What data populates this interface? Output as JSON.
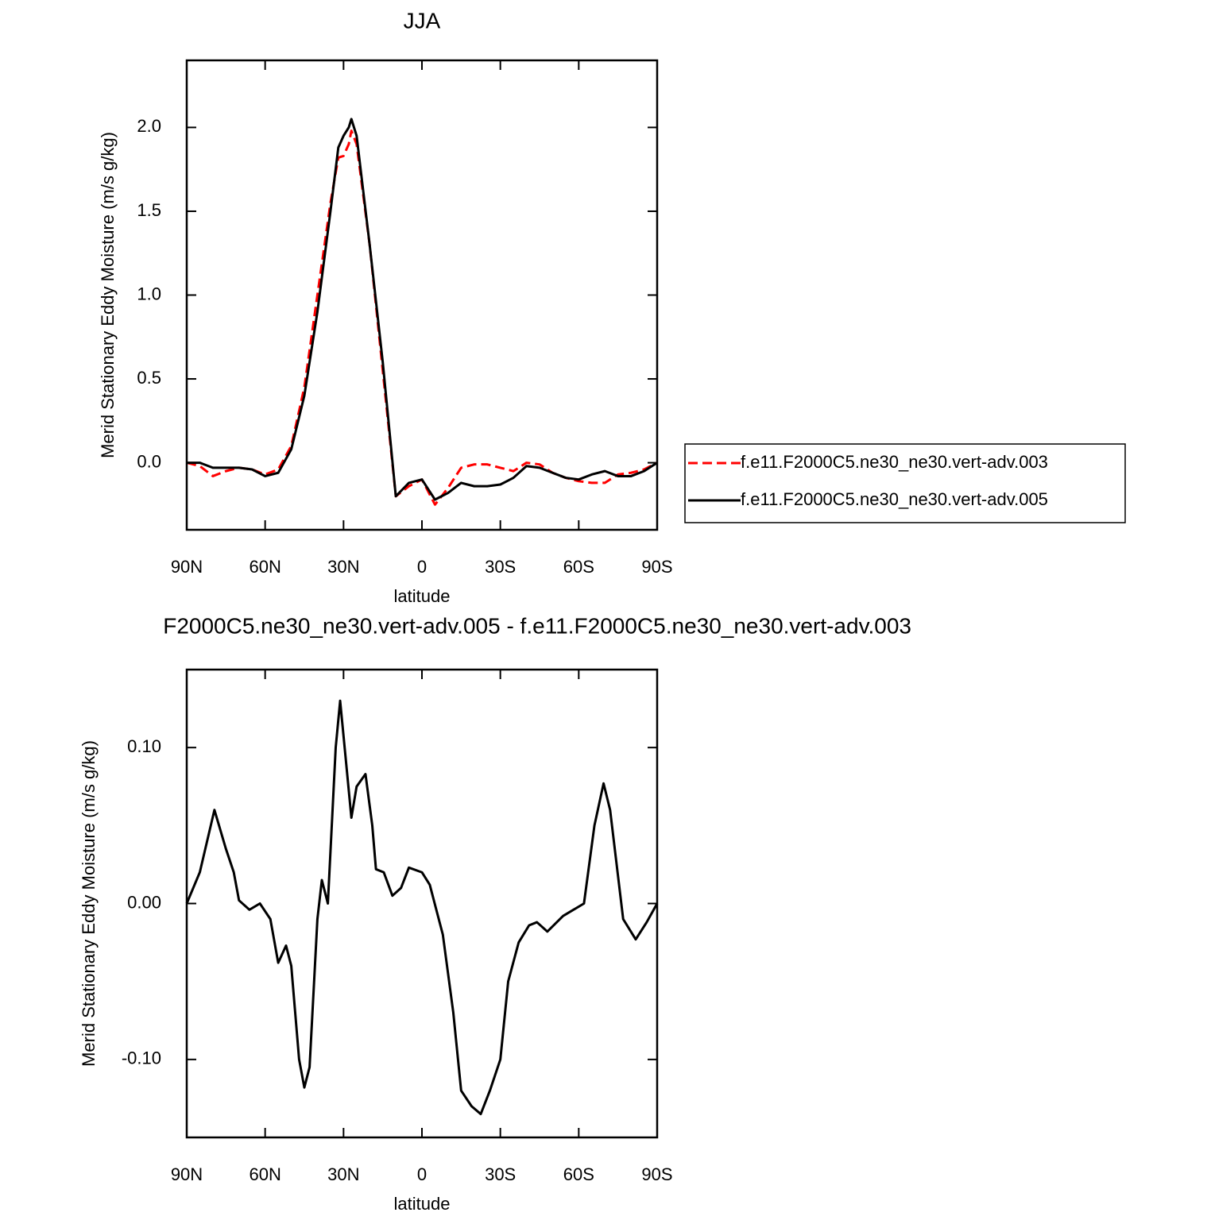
{
  "chart_data": [
    {
      "type": "line",
      "title": "JJA",
      "xlabel": "latitude",
      "ylabel": "Merid Stationary Eddy Moisture (m/s g/kg)",
      "x": [
        90,
        85,
        80,
        75,
        70,
        65,
        60,
        55,
        50,
        45,
        40,
        35,
        32,
        30,
        28,
        27,
        25,
        20,
        15,
        10,
        5,
        0,
        -5,
        -10,
        -15,
        -20,
        -25,
        -30,
        -35,
        -40,
        -45,
        -50,
        -55,
        -60,
        -65,
        -70,
        -75,
        -80,
        -85,
        -90
      ],
      "series": [
        {
          "name": "f.e11.F2000C5.ne30_ne30.vert-adv.003",
          "color": "#ff0000",
          "line_style": "dashed",
          "values": [
            0,
            -0.02,
            -0.08,
            -0.05,
            -0.03,
            -0.04,
            -0.07,
            -0.04,
            0.1,
            0.45,
            1.0,
            1.55,
            1.82,
            1.83,
            1.9,
            1.98,
            1.9,
            1.3,
            0.55,
            -0.2,
            -0.14,
            -0.1,
            -0.25,
            -0.15,
            -0.03,
            -0.01,
            -0.01,
            -0.03,
            -0.05,
            0.0,
            -0.01,
            -0.06,
            -0.09,
            -0.11,
            -0.12,
            -0.12,
            -0.07,
            -0.06,
            -0.04,
            0
          ]
        },
        {
          "name": "f.e11.F2000C5.ne30_ne30.vert-adv.005",
          "color": "#000000",
          "line_style": "solid",
          "values": [
            0,
            0.0,
            -0.03,
            -0.03,
            -0.03,
            -0.04,
            -0.08,
            -0.06,
            0.08,
            0.4,
            0.9,
            1.5,
            1.88,
            1.95,
            2.0,
            2.05,
            1.95,
            1.3,
            0.6,
            -0.2,
            -0.12,
            -0.1,
            -0.22,
            -0.18,
            -0.12,
            -0.14,
            -0.14,
            -0.13,
            -0.09,
            -0.02,
            -0.03,
            -0.06,
            -0.09,
            -0.1,
            -0.07,
            -0.05,
            -0.08,
            -0.08,
            -0.05,
            0
          ]
        }
      ],
      "xlim": [
        90,
        -90
      ],
      "xticks": [
        {
          "value": 90,
          "label": "90N"
        },
        {
          "value": 60,
          "label": "60N"
        },
        {
          "value": 30,
          "label": "30N"
        },
        0,
        {
          "value": -30,
          "label": "30S"
        },
        {
          "value": -60,
          "label": "60S"
        },
        {
          "value": -90,
          "label": "90S"
        }
      ],
      "ylim": [
        -0.4,
        2.4
      ],
      "yticks": [
        {
          "value": 0,
          "label": "0.0"
        },
        {
          "value": 0.5,
          "label": "0.5"
        },
        {
          "value": 1,
          "label": "1.0"
        },
        {
          "value": 1.5,
          "label": "1.5"
        },
        {
          "value": 2,
          "label": "2.0"
        }
      ],
      "legend": "right",
      "grid": false
    },
    {
      "type": "line",
      "title": "F2000C5.ne30_ne30.vert-adv.005 - f.e11.F2000C5.ne30_ne30.vert-adv.003",
      "xlabel": "latitude",
      "ylabel": "Merid Stationary Eddy Moisture (m/s g/kg)",
      "x": [
        90,
        85,
        79.4,
        75,
        72,
        70,
        66,
        62,
        58,
        55,
        52,
        50,
        47,
        45,
        43,
        40,
        38.3,
        36,
        33,
        31.3,
        29,
        27,
        25,
        21.6,
        19,
        17.6,
        14.6,
        11.3,
        8,
        5,
        0,
        -3,
        -8,
        -12,
        -15,
        -19,
        -22.5,
        -26,
        -30,
        -33,
        -37,
        -41,
        -44,
        -48,
        -54,
        -58,
        -62,
        -66,
        -69.5,
        -72,
        -77,
        -81.8,
        -86,
        -90
      ],
      "series": [
        {
          "color": "#000000",
          "line_style": "solid",
          "values": [
            0,
            0.02,
            0.06,
            0.035,
            0.02,
            0.002,
            -0.004,
            0,
            -0.01,
            -0.038,
            -0.027,
            -0.04,
            -0.1,
            -0.118,
            -0.105,
            -0.01,
            0.015,
            0,
            0.1,
            0.13,
            0.09,
            0.055,
            0.075,
            0.083,
            0.05,
            0.022,
            0.02,
            0.005,
            0.01,
            0.023,
            0.02,
            0.012,
            -0.02,
            -0.07,
            -0.12,
            -0.13,
            -0.135,
            -0.12,
            -0.1,
            -0.05,
            -0.025,
            -0.014,
            -0.012,
            -0.018,
            -0.008,
            -0.004,
            0,
            0.05,
            0.077,
            0.06,
            -0.01,
            -0.023,
            -0.012,
            0
          ]
        }
      ],
      "xlim": [
        90,
        -90
      ],
      "xticks": [
        {
          "value": 90,
          "label": "90N"
        },
        {
          "value": 60,
          "label": "60N"
        },
        {
          "value": 30,
          "label": "30N"
        },
        0,
        {
          "value": -30,
          "label": "30S"
        },
        {
          "value": -60,
          "label": "60S"
        },
        {
          "value": -90,
          "label": "90S"
        }
      ],
      "ylim": [
        -0.15,
        0.15
      ],
      "yticks": [
        {
          "value": -0.1,
          "label": "-0.10"
        },
        {
          "value": 0,
          "label": "0.00"
        },
        {
          "value": 0.1,
          "label": "0.10"
        }
      ],
      "grid": false
    }
  ]
}
